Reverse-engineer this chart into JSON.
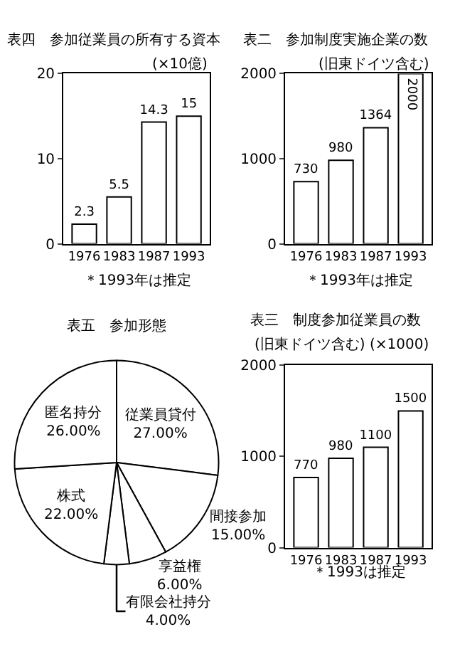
{
  "chart_data": [
    {
      "type": "bar",
      "title": "表四　参加従業員の所有する資本",
      "subtitle": "(×10億)",
      "categories": [
        "1976",
        "1983",
        "1987",
        "1993"
      ],
      "values": [
        2.3,
        5.5,
        14.3,
        15
      ],
      "color": "#ffffff",
      "ylim": [
        0,
        20
      ],
      "yticks": [
        0,
        10,
        20
      ],
      "data_labels": true,
      "annotations": [
        "＊1993年は推定"
      ]
    },
    {
      "type": "bar",
      "title": "表二　参加制度実施企業の数",
      "subtitle": "(旧東ドイツ含む)",
      "categories": [
        "1976",
        "1983",
        "1987",
        "1993"
      ],
      "values": [
        730,
        980,
        1364,
        2000
      ],
      "color": "#ffffff",
      "ylim": [
        0,
        2000
      ],
      "yticks": [
        0,
        1000,
        2000
      ],
      "data_labels": true,
      "annotations": [
        "＊1993年は推定"
      ]
    },
    {
      "type": "pie",
      "title": "表五　参加形態",
      "categories": [
        "従業員貸付",
        "間接参加",
        "享益権",
        "有限会社持分",
        "株式",
        "匿名持分"
      ],
      "values": [
        27,
        15,
        6,
        4,
        22,
        26
      ],
      "colors": [
        "#ffffff",
        "#ffffff",
        "#ffffff",
        "#ffffff",
        "#ffffff",
        "#ffffff"
      ],
      "value_labels": [
        "27.00%",
        "15.00%",
        "6.00%",
        "4.00%",
        "22.00%",
        "26.00%"
      ]
    },
    {
      "type": "bar",
      "title": "表三　制度参加従業員の数",
      "subtitle": "(旧東ドイツ含む) (×1000)",
      "categories": [
        "1976",
        "1983",
        "1987",
        "1993"
      ],
      "values": [
        770,
        980,
        1100,
        1500
      ],
      "color": "#ffffff",
      "ylim": [
        0,
        2000
      ],
      "yticks": [
        0,
        1000,
        2000
      ],
      "data_labels": true,
      "annotations": [
        "＊1993は推定"
      ]
    }
  ]
}
